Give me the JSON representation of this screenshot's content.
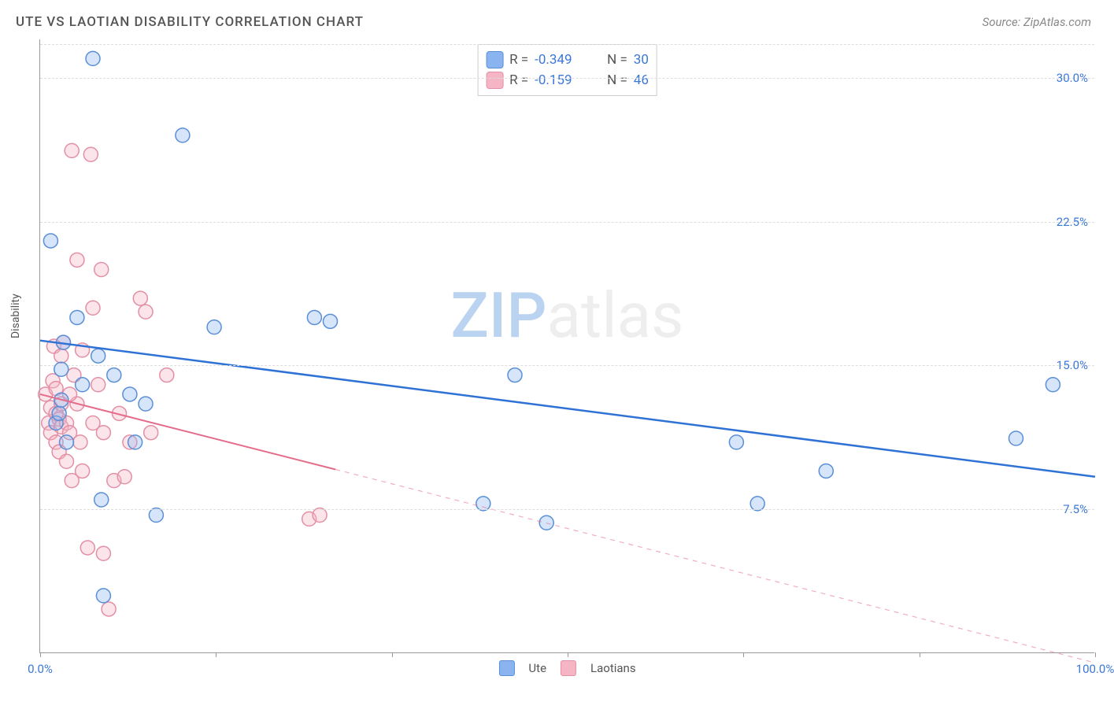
{
  "title": "UTE VS LAOTIAN DISABILITY CORRELATION CHART",
  "source": "Source: ZipAtlas.com",
  "ylabel": "Disability",
  "watermark": {
    "bold": "ZIP",
    "light": "atlas"
  },
  "chart": {
    "type": "scatter",
    "xlim": [
      0,
      100
    ],
    "ylim": [
      0,
      32
    ],
    "x_ticks": [
      0,
      50,
      100
    ],
    "x_tick_labels": [
      "0.0%",
      "",
      "100.0%"
    ],
    "x_minor_ticks": [
      16.67,
      33.33,
      66.67,
      83.33
    ],
    "y_ticks": [
      7.5,
      15.0,
      22.5,
      30.0
    ],
    "y_tick_labels": [
      "7.5%",
      "15.0%",
      "22.5%",
      "30.0%"
    ],
    "grid_color": "#dddddd",
    "axis_color": "#999999",
    "background_color": "#ffffff",
    "tick_label_color_x": "#3b78d8",
    "tick_label_color_y": "#3b78d8",
    "marker_radius": 9,
    "marker_stroke_width": 1.5,
    "marker_fill_opacity": 0.35,
    "series": [
      {
        "name": "Ute",
        "color": "#8ab4f0",
        "stroke": "#5a8fd6",
        "line_color": "#2f72d6",
        "line_width": 2.5,
        "line_dash": "none",
        "R": "-0.349",
        "N": "30",
        "points": [
          [
            1.0,
            21.5
          ],
          [
            1.5,
            12.0
          ],
          [
            1.8,
            12.5
          ],
          [
            2.0,
            13.2
          ],
          [
            2.0,
            14.8
          ],
          [
            2.2,
            16.2
          ],
          [
            2.5,
            11.0
          ],
          [
            3.5,
            17.5
          ],
          [
            4.0,
            14.0
          ],
          [
            5.0,
            31.0
          ],
          [
            5.5,
            15.5
          ],
          [
            5.8,
            8.0
          ],
          [
            6.0,
            3.0
          ],
          [
            7.0,
            14.5
          ],
          [
            8.5,
            13.5
          ],
          [
            9.0,
            11.0
          ],
          [
            10.0,
            13.0
          ],
          [
            11.0,
            7.2
          ],
          [
            13.5,
            27.0
          ],
          [
            16.5,
            17.0
          ],
          [
            26.0,
            17.5
          ],
          [
            27.5,
            17.3
          ],
          [
            42.0,
            7.8
          ],
          [
            45.0,
            14.5
          ],
          [
            48.0,
            6.8
          ],
          [
            66.0,
            11.0
          ],
          [
            68.0,
            7.8
          ],
          [
            74.5,
            9.5
          ],
          [
            92.5,
            11.2
          ],
          [
            96.0,
            14.0
          ]
        ],
        "trend": {
          "x1": 0,
          "y1": 16.3,
          "x2": 100,
          "y2": 9.2
        }
      },
      {
        "name": "Laotians",
        "color": "#f5b5c4",
        "stroke": "#e38fa5",
        "line_color": "#e56b8a",
        "line_width": 2,
        "line_dash": "solid_then_dash",
        "solid_x_end": 28,
        "R": "-0.159",
        "N": "46",
        "points": [
          [
            0.5,
            13.5
          ],
          [
            0.8,
            12.0
          ],
          [
            1.0,
            12.8
          ],
          [
            1.0,
            11.5
          ],
          [
            1.2,
            14.2
          ],
          [
            1.3,
            16.0
          ],
          [
            1.5,
            12.5
          ],
          [
            1.5,
            11.0
          ],
          [
            1.8,
            10.5
          ],
          [
            1.8,
            12.2
          ],
          [
            2.0,
            15.5
          ],
          [
            2.0,
            13.0
          ],
          [
            2.0,
            11.8
          ],
          [
            2.2,
            16.2
          ],
          [
            2.5,
            12.0
          ],
          [
            2.5,
            10.0
          ],
          [
            2.8,
            11.5
          ],
          [
            3.0,
            9.0
          ],
          [
            3.0,
            26.2
          ],
          [
            3.2,
            14.5
          ],
          [
            3.5,
            13.0
          ],
          [
            3.5,
            20.5
          ],
          [
            3.8,
            11.0
          ],
          [
            4.0,
            15.8
          ],
          [
            4.0,
            9.5
          ],
          [
            4.5,
            5.5
          ],
          [
            4.8,
            26.0
          ],
          [
            5.0,
            18.0
          ],
          [
            5.0,
            12.0
          ],
          [
            5.5,
            14.0
          ],
          [
            5.8,
            20.0
          ],
          [
            6.0,
            11.5
          ],
          [
            6.0,
            5.2
          ],
          [
            6.5,
            2.3
          ],
          [
            7.0,
            9.0
          ],
          [
            7.5,
            12.5
          ],
          [
            8.0,
            9.2
          ],
          [
            8.5,
            11.0
          ],
          [
            9.5,
            18.5
          ],
          [
            10.0,
            17.8
          ],
          [
            10.5,
            11.5
          ],
          [
            12.0,
            14.5
          ],
          [
            25.5,
            7.0
          ],
          [
            26.5,
            7.2
          ],
          [
            1.5,
            13.8
          ],
          [
            2.8,
            13.5
          ]
        ],
        "trend": {
          "x1": 0,
          "y1": 13.5,
          "x2": 100,
          "y2": -0.5
        }
      }
    ]
  },
  "legend_top": {
    "R_label": "R =",
    "N_label": "N ="
  },
  "legend_bottom": [
    {
      "label": "Ute",
      "fill": "#8ab4f0",
      "stroke": "#5a8fd6"
    },
    {
      "label": "Laotians",
      "fill": "#f5b5c4",
      "stroke": "#e38fa5"
    }
  ]
}
